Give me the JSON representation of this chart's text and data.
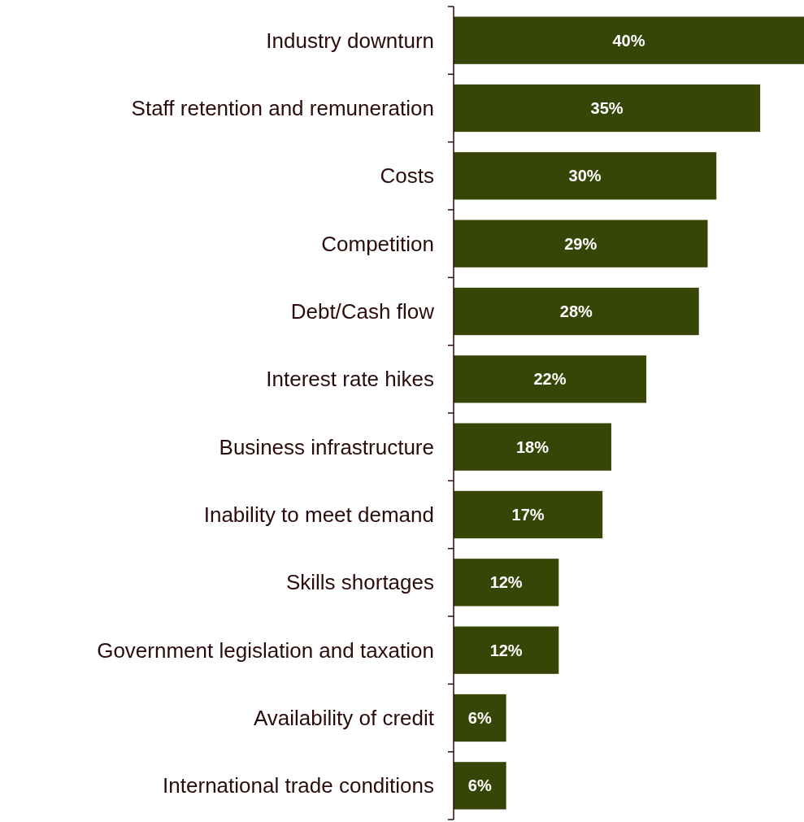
{
  "chart_data": {
    "type": "bar",
    "orientation": "horizontal",
    "categories": [
      "Industry downturn",
      "Staff retention and remuneration",
      "Costs",
      "Competition",
      "Debt/Cash flow",
      "Interest rate hikes",
      "Business infrastructure",
      "Inability to meet demand",
      "Skills shortages",
      "Government legislation and taxation",
      "Availability of credit",
      "International trade conditions"
    ],
    "values": [
      40,
      35,
      30,
      29,
      28,
      22,
      18,
      17,
      12,
      12,
      6,
      6
    ],
    "value_labels": [
      "40%",
      "35%",
      "30%",
      "29%",
      "28%",
      "22%",
      "18%",
      "17%",
      "12%",
      "12%",
      "6%",
      "6%"
    ],
    "color": "#374607"
  }
}
